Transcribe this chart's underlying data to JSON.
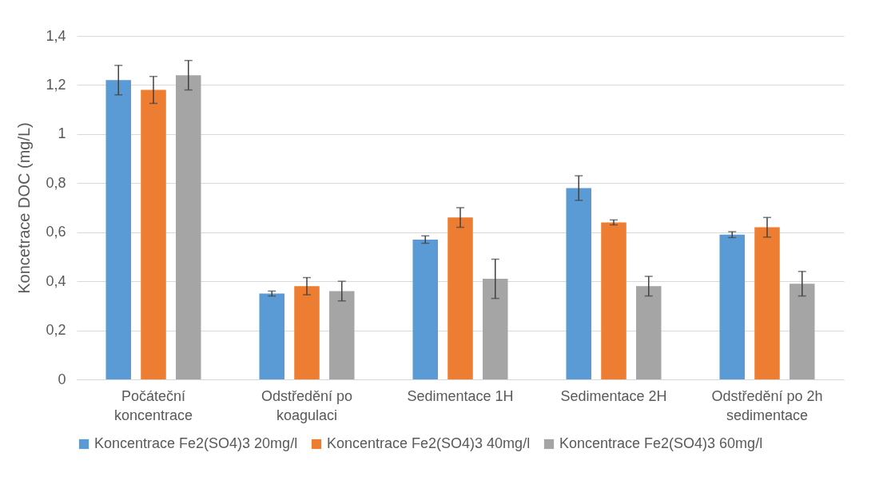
{
  "chart_data": {
    "type": "bar",
    "ylabel": "Koncetrace DOC (mg/L)",
    "categories": [
      "Počáteční koncentrace",
      "Odstředění po koagulaci",
      "Sedimentace 1H",
      "Sedimentace 2H",
      "Odstředění po 2h sedimentace"
    ],
    "series": [
      {
        "name": "Koncentrace Fe2(SO4)3 20mg/l",
        "color": "#5b9bd5",
        "values": [
          1.22,
          0.35,
          0.57,
          0.78,
          0.59
        ],
        "errors": [
          0.06,
          0.01,
          0.015,
          0.05,
          0.012
        ]
      },
      {
        "name": "Koncentrace Fe2(SO4)3 40mg/l",
        "color": "#ed7d31",
        "values": [
          1.18,
          0.38,
          0.66,
          0.64,
          0.62
        ],
        "errors": [
          0.055,
          0.035,
          0.04,
          0.01,
          0.04
        ]
      },
      {
        "name": "Koncentrace Fe2(SO4)3 60mg/l",
        "color": "#a5a5a5",
        "values": [
          1.24,
          0.36,
          0.41,
          0.38,
          0.39
        ],
        "errors": [
          0.06,
          0.04,
          0.08,
          0.04,
          0.05
        ]
      }
    ],
    "ylim": [
      0,
      1.4
    ],
    "yticks": [
      0,
      {
        "value": 0.2,
        "label": "0,2"
      },
      {
        "value": 0.4,
        "label": "0,4"
      },
      {
        "value": 0.6,
        "label": "0,6"
      },
      {
        "value": 0.8,
        "label": "0,8"
      },
      1,
      {
        "value": 1.2,
        "label": "1,2"
      },
      {
        "value": 1.4,
        "label": "1,4"
      }
    ],
    "grid": "y",
    "legend": "bottom"
  }
}
